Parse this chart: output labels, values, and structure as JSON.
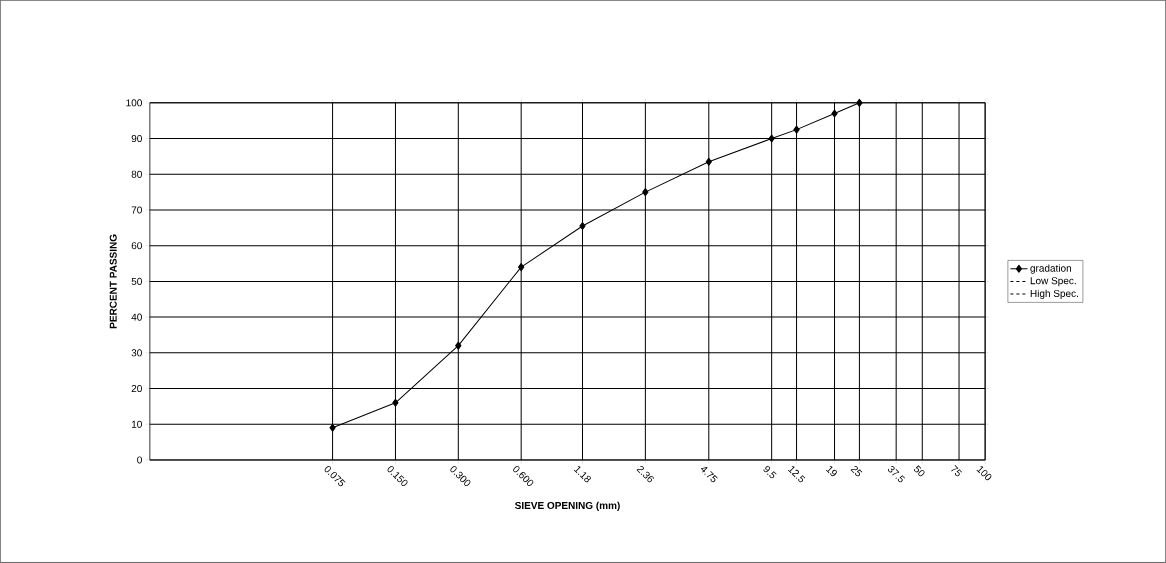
{
  "chart_data": {
    "type": "line",
    "xlabel": "SIEVE OPENING (mm)",
    "ylabel": "PERCENT PASSING",
    "x": [
      0.075,
      0.15,
      0.3,
      0.6,
      1.18,
      2.36,
      4.75,
      9.5,
      12.5,
      19,
      25
    ],
    "series": [
      {
        "name": "gradation",
        "color": "#000000",
        "marker": "diamond",
        "line_style": "solid",
        "values": [
          9,
          16,
          32,
          54,
          65.5,
          75,
          83.5,
          90,
          92.5,
          97,
          100
        ]
      },
      {
        "name": "Low Spec.",
        "color": "#000000",
        "marker": "none",
        "line_style": "dashed",
        "values": [
          null,
          null,
          null,
          null,
          null,
          null,
          null,
          null,
          null,
          null,
          null
        ]
      },
      {
        "name": "High Spec.",
        "color": "#000000",
        "marker": "none",
        "line_style": "dashed",
        "values": [
          null,
          null,
          null,
          null,
          null,
          null,
          null,
          null,
          null,
          null,
          null
        ]
      }
    ],
    "log": "x",
    "xlim": [
      0.01,
      100
    ],
    "ylim": [
      0,
      100
    ],
    "xticks": [
      0.075,
      {
        "value": 0.15,
        "label": "0.150"
      },
      {
        "value": 0.3,
        "label": "0.300"
      },
      {
        "value": 0.6,
        "label": "0.600"
      },
      1.18,
      2.36,
      4.75,
      9.5,
      12.5,
      19,
      25,
      37.5,
      50,
      75,
      100
    ],
    "yticks": [
      0,
      10,
      20,
      30,
      40,
      50,
      60,
      70,
      80,
      90,
      100
    ],
    "grid": true,
    "legend": "right"
  }
}
